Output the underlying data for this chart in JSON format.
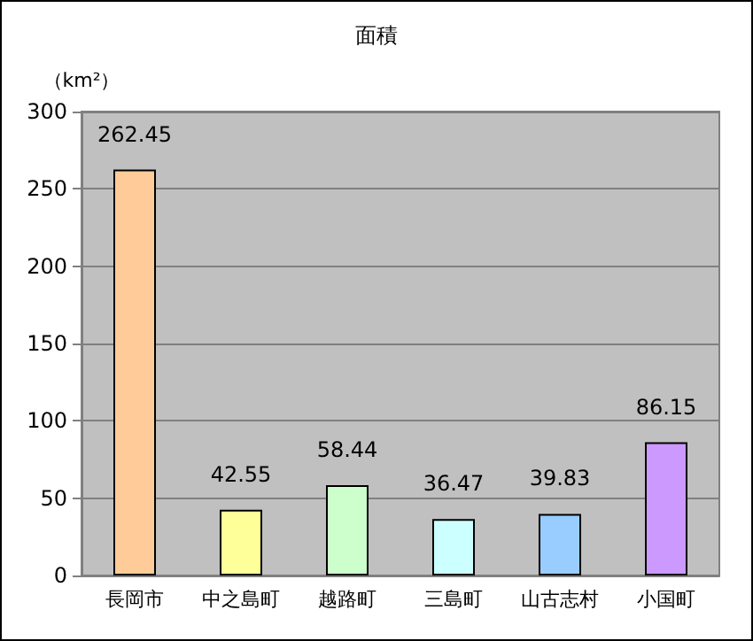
{
  "chart_data": {
    "type": "bar",
    "title": "面積",
    "ylabel": "（km²）",
    "categories": [
      "長岡市",
      "中之島町",
      "越路町",
      "三島町",
      "山古志村",
      "小国町"
    ],
    "values": [
      262.45,
      42.55,
      58.44,
      36.47,
      39.83,
      86.15
    ],
    "colors": [
      "#ffcc99",
      "#ffff99",
      "#ccffcc",
      "#ccffff",
      "#99ccff",
      "#cc99ff"
    ],
    "data_labels": true,
    "ylim": [
      0,
      300
    ],
    "yticks": [
      0,
      50,
      100,
      150,
      200,
      250,
      300
    ],
    "grid": "y"
  }
}
